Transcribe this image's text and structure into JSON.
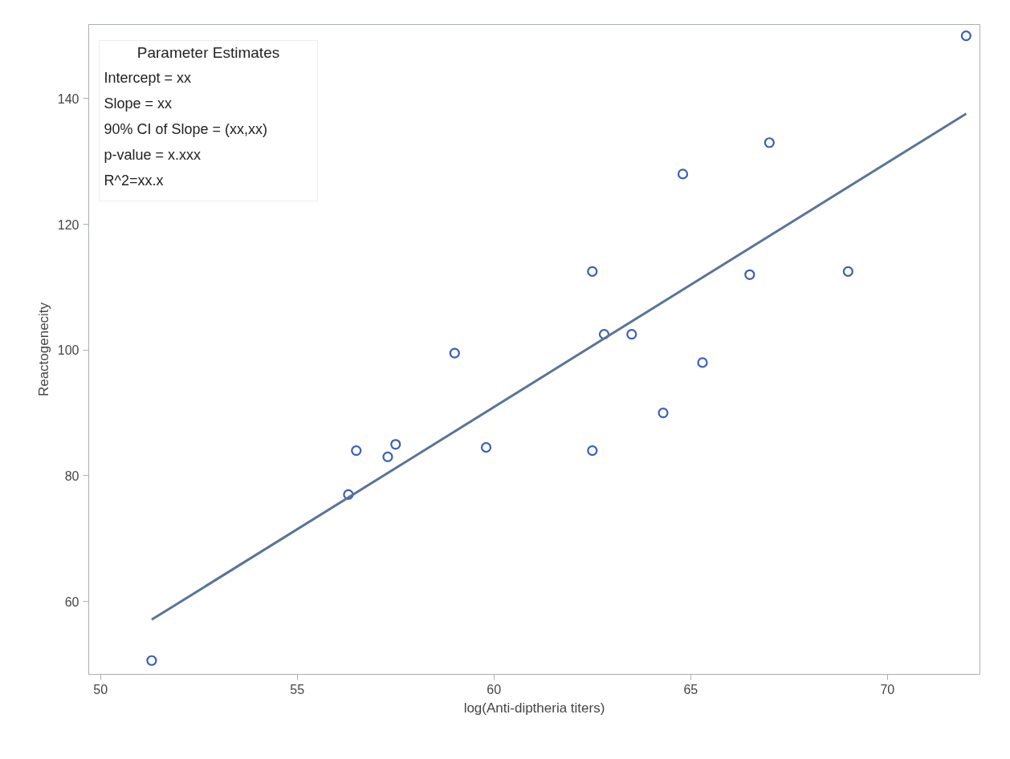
{
  "chart_data": {
    "type": "scatter",
    "xlabel": "log(Anti-diptheria titers)",
    "ylabel": "Reactogenecity",
    "xlim": [
      49.7,
      72.35
    ],
    "ylim": [
      48.4,
      151.8
    ],
    "xticks": [
      50,
      55,
      60,
      65,
      70
    ],
    "yticks": [
      60,
      80,
      100,
      120,
      140
    ],
    "grid": false,
    "annotations": [
      "Parameter Estimates",
      "Intercept = xx",
      "Slope = xx",
      "90% CI of Slope = (xx,xx)",
      "p-value = x.xxx",
      "R^2=xx.x"
    ],
    "series": [
      {
        "marker": "circle",
        "color": "#3a5fb8",
        "x": [
          51.3,
          56.3,
          56.5,
          57.3,
          57.5,
          59.0,
          59.8,
          62.5,
          62.5,
          62.8,
          63.5,
          64.3,
          64.8,
          65.3,
          66.5,
          67.0,
          69.0,
          72.0
        ],
        "values": [
          50.6,
          77.0,
          84,
          83,
          85,
          99.5,
          84.5,
          112.5,
          84,
          102.5,
          102.5,
          90,
          128,
          98,
          112,
          133,
          112.5,
          150
        ]
      },
      {
        "type": "line",
        "marker": "none",
        "color": "#5a7498",
        "x": [
          51.3,
          72.0
        ],
        "values": [
          57.1,
          137.6
        ]
      }
    ]
  }
}
